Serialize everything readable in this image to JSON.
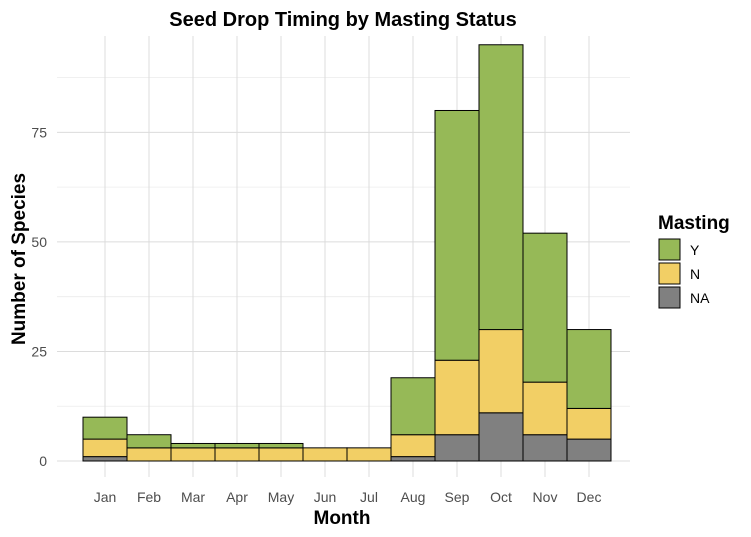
{
  "chart_data": {
    "type": "bar",
    "stacked": true,
    "title": "Seed Drop Timing by Masting Status",
    "xlabel": "Month",
    "ylabel": "Number of Species",
    "categories": [
      "Jan",
      "Feb",
      "Mar",
      "Apr",
      "May",
      "Jun",
      "Jul",
      "Aug",
      "Sep",
      "Oct",
      "Nov",
      "Dec"
    ],
    "series": [
      {
        "name": "NA",
        "color": "#808080",
        "values": [
          1,
          0,
          0,
          0,
          0,
          0,
          0,
          1,
          6,
          11,
          6,
          5
        ]
      },
      {
        "name": "N",
        "color": "#f2cf65",
        "values": [
          4,
          3,
          3,
          3,
          3,
          3,
          3,
          5,
          17,
          19,
          12,
          7
        ]
      },
      {
        "name": "Y",
        "color": "#96b957",
        "values": [
          5,
          3,
          1,
          1,
          1,
          0,
          0,
          13,
          57,
          65,
          34,
          18
        ]
      }
    ],
    "ylim": [
      0,
      97
    ],
    "yticks": [
      0,
      25,
      50,
      75
    ],
    "grid": true,
    "legend": {
      "title": "Masting",
      "placement": "right",
      "entries": [
        "Y",
        "N",
        "NA"
      ]
    }
  }
}
